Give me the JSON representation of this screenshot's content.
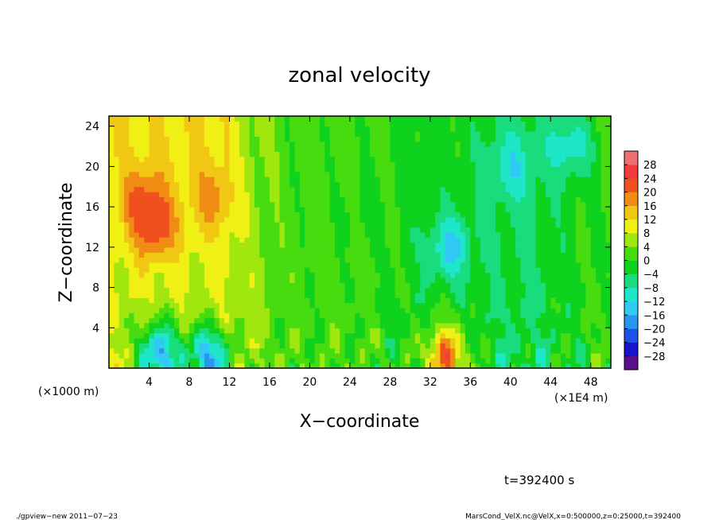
{
  "chart_data": {
    "type": "heatmap",
    "title": "zonal velocity",
    "xlabel": "X−coordinate",
    "ylabel": "Z−coordinate",
    "x_units_note": "(×1000 m)",
    "x_units_note_right": "(×1E4 m)",
    "xlim": [
      0,
      50
    ],
    "ylim": [
      0,
      25
    ],
    "x_ticks": [
      4,
      8,
      12,
      16,
      20,
      24,
      28,
      32,
      36,
      40,
      44,
      48
    ],
    "x_tick_labels": [
      "4",
      "8",
      "12",
      "16",
      "20",
      "24",
      "28",
      "32",
      "36",
      "40",
      "44",
      "48"
    ],
    "y_ticks": [
      4,
      8,
      12,
      16,
      20,
      24
    ],
    "y_tick_labels": [
      "4",
      "8",
      "12",
      "16",
      "20",
      "24"
    ],
    "colorbar": {
      "levels": [
        -32,
        -28,
        -24,
        -20,
        -16,
        -12,
        -8,
        -4,
        0,
        4,
        8,
        12,
        16,
        20,
        24,
        28,
        32
      ],
      "labels": [
        "28",
        "24",
        "20",
        "16",
        "12",
        "8",
        "4",
        "0",
        "−4",
        "−8",
        "−12",
        "−16",
        "−20",
        "−24",
        "−28"
      ],
      "label_values": [
        28,
        24,
        20,
        16,
        12,
        8,
        4,
        0,
        -4,
        -8,
        -12,
        -16,
        -20,
        -24,
        -28
      ],
      "colors": [
        "#5c0f8c",
        "#1a14c8",
        "#1e50e6",
        "#2896f0",
        "#32c8f5",
        "#1ee6c8",
        "#19dc7d",
        "#0fd21e",
        "#46dc0f",
        "#a0e60f",
        "#f0f014",
        "#f0c814",
        "#f08c14",
        "#f0501e",
        "#f03c3c",
        "#f06e6e"
      ]
    },
    "features": [
      {
        "x": 4.5,
        "z": 14,
        "value": 20
      },
      {
        "x": 3.5,
        "z": 17,
        "value": 16
      },
      {
        "x": 10.5,
        "z": 17,
        "value": 14
      },
      {
        "x": 5,
        "z": 1.5,
        "value": -22
      },
      {
        "x": 10,
        "z": 1,
        "value": -22
      },
      {
        "x": 34,
        "z": 12,
        "value": -13
      },
      {
        "x": 46,
        "z": 22,
        "value": -11
      },
      {
        "x": 33.5,
        "z": 1,
        "value": 22
      },
      {
        "x": 40,
        "z": 20,
        "value": -10
      },
      {
        "x": 25,
        "z": 15,
        "value": -2
      }
    ]
  },
  "annotations": {
    "time": "t=392400 s",
    "footer_left": "./gpview−new   2011−07−23",
    "footer_right": "MarsCond_VelX.nc@VelX,x=0:500000,z=0:25000,t=392400"
  }
}
